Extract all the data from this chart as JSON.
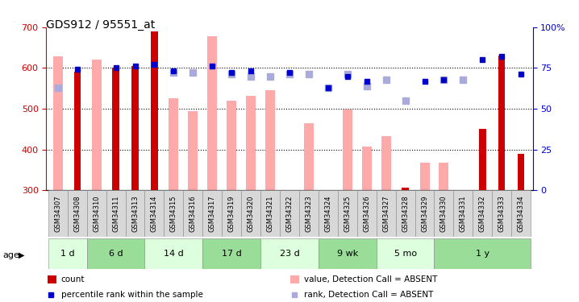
{
  "title": "GDS912 / 95551_at",
  "samples": [
    "GSM34307",
    "GSM34308",
    "GSM34310",
    "GSM34311",
    "GSM34313",
    "GSM34314",
    "GSM34315",
    "GSM34316",
    "GSM34317",
    "GSM34319",
    "GSM34320",
    "GSM34321",
    "GSM34322",
    "GSM34323",
    "GSM34324",
    "GSM34325",
    "GSM34326",
    "GSM34327",
    "GSM34328",
    "GSM34329",
    "GSM34330",
    "GSM34331",
    "GSM34332",
    "GSM34333",
    "GSM34334"
  ],
  "count_values": [
    null,
    590,
    null,
    600,
    605,
    690,
    null,
    null,
    null,
    null,
    null,
    null,
    null,
    null,
    null,
    null,
    null,
    null,
    307,
    null,
    null,
    null,
    450,
    630,
    390
  ],
  "rank_values": [
    null,
    74,
    null,
    75,
    76,
    77,
    73,
    null,
    76,
    72,
    73,
    null,
    72,
    null,
    63,
    70,
    67,
    null,
    null,
    67,
    68,
    null,
    80,
    82,
    71
  ],
  "absent_value": [
    628,
    null,
    620,
    null,
    null,
    null,
    525,
    495,
    678,
    520,
    532,
    545,
    null,
    465,
    null,
    498,
    408,
    432,
    null,
    368,
    368,
    null,
    null,
    null,
    null
  ],
  "absent_rank": [
    63,
    null,
    null,
    null,
    null,
    null,
    72,
    72,
    null,
    71,
    70,
    70,
    71,
    71,
    63,
    71,
    64,
    68,
    55,
    null,
    68,
    68,
    null,
    null,
    null
  ],
  "age_groups": [
    {
      "label": "1 d",
      "start": 0,
      "end": 1
    },
    {
      "label": "6 d",
      "start": 2,
      "end": 4
    },
    {
      "label": "14 d",
      "start": 5,
      "end": 7
    },
    {
      "label": "17 d",
      "start": 8,
      "end": 10
    },
    {
      "label": "23 d",
      "start": 11,
      "end": 13
    },
    {
      "label": "9 wk",
      "start": 14,
      "end": 16
    },
    {
      "label": "5 mo",
      "start": 17,
      "end": 19
    },
    {
      "label": "1 y",
      "start": 20,
      "end": 24
    }
  ],
  "ylim_left": [
    300,
    700
  ],
  "ylim_right": [
    0,
    100
  ],
  "bar_color_count": "#cc0000",
  "bar_color_absent": "#ffaaaa",
  "dot_color_rank": "#0000cc",
  "dot_color_absent_rank": "#aaaadd",
  "grid_color": "black",
  "age_color_alt1": "#ddffdd",
  "age_color_alt2": "#99dd99",
  "ylabel_left_color": "#cc0000",
  "ylabel_right_color": "#0000cc"
}
